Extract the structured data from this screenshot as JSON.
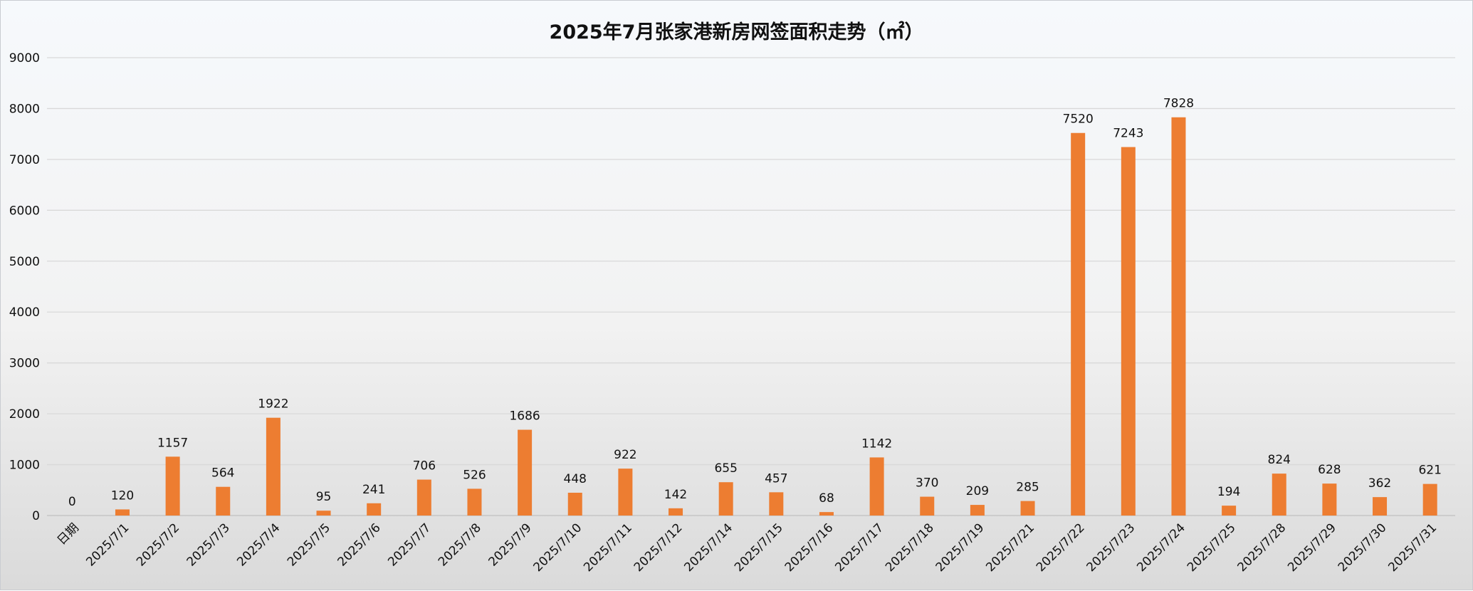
{
  "chart_data": {
    "type": "bar",
    "title": "2025年7月张家港新房网签面积走势（㎡）",
    "xlabel": "",
    "ylabel": "",
    "ylim": [
      0,
      9000
    ],
    "yticks": [
      0,
      1000,
      2000,
      3000,
      4000,
      5000,
      6000,
      7000,
      8000,
      9000
    ],
    "grid": true,
    "legend": "none",
    "bar_color": "#ED7D31",
    "categories": [
      "日期",
      "2025/7/1",
      "2025/7/2",
      "2025/7/3",
      "2025/7/4",
      "2025/7/5",
      "2025/7/6",
      "2025/7/7",
      "2025/7/8",
      "2025/7/9",
      "2025/7/10",
      "2025/7/11",
      "2025/7/12",
      "2025/7/14",
      "2025/7/15",
      "2025/7/16",
      "2025/7/17",
      "2025/7/18",
      "2025/7/19",
      "2025/7/21",
      "2025/7/22",
      "2025/7/23",
      "2025/7/24",
      "2025/7/25",
      "2025/7/28",
      "2025/7/29",
      "2025/7/30",
      "2025/7/31"
    ],
    "values": [
      0,
      120,
      1157,
      564,
      1922,
      95,
      241,
      706,
      526,
      1686,
      448,
      922,
      142,
      655,
      457,
      68,
      1142,
      370,
      209,
      285,
      7520,
      7243,
      7828,
      194,
      824,
      628,
      362,
      621
    ]
  }
}
